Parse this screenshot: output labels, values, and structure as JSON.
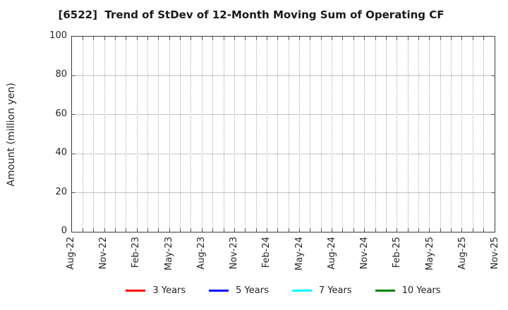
{
  "chart_data": {
    "type": "line",
    "title": "[6522]  Trend of StDev of 12-Month Moving Sum of Operating CF",
    "xlabel": "",
    "ylabel": "Amount (million yen)",
    "ylim": [
      0,
      100
    ],
    "yticks": [
      0,
      20,
      40,
      60,
      80,
      100
    ],
    "x_tick_labels": [
      "Aug-22",
      "Nov-22",
      "Feb-23",
      "May-23",
      "Aug-23",
      "Nov-23",
      "Feb-24",
      "May-24",
      "Aug-24",
      "Nov-24",
      "Feb-25",
      "May-25",
      "Aug-25",
      "Nov-25"
    ],
    "x_tick_interval_months": 3,
    "grid": true,
    "grid_style": "dotted",
    "legend_position": "bottom-center",
    "plot_empty": true,
    "series": [
      {
        "name": "3 Years",
        "color": "#ff0000",
        "values": []
      },
      {
        "name": "5 Years",
        "color": "#0000ff",
        "values": []
      },
      {
        "name": "7 Years",
        "color": "#00ffff",
        "values": []
      },
      {
        "name": "10 Years",
        "color": "#008000",
        "values": []
      }
    ]
  },
  "colors": {
    "axis_border": "#3a3a3a",
    "grid_horizontal": "#8f8f8f",
    "grid_vertical": "#ababab",
    "tick_mark": "#555555",
    "text": "#262626",
    "title_text": "#1a1a1a",
    "background": "#ffffff"
  }
}
